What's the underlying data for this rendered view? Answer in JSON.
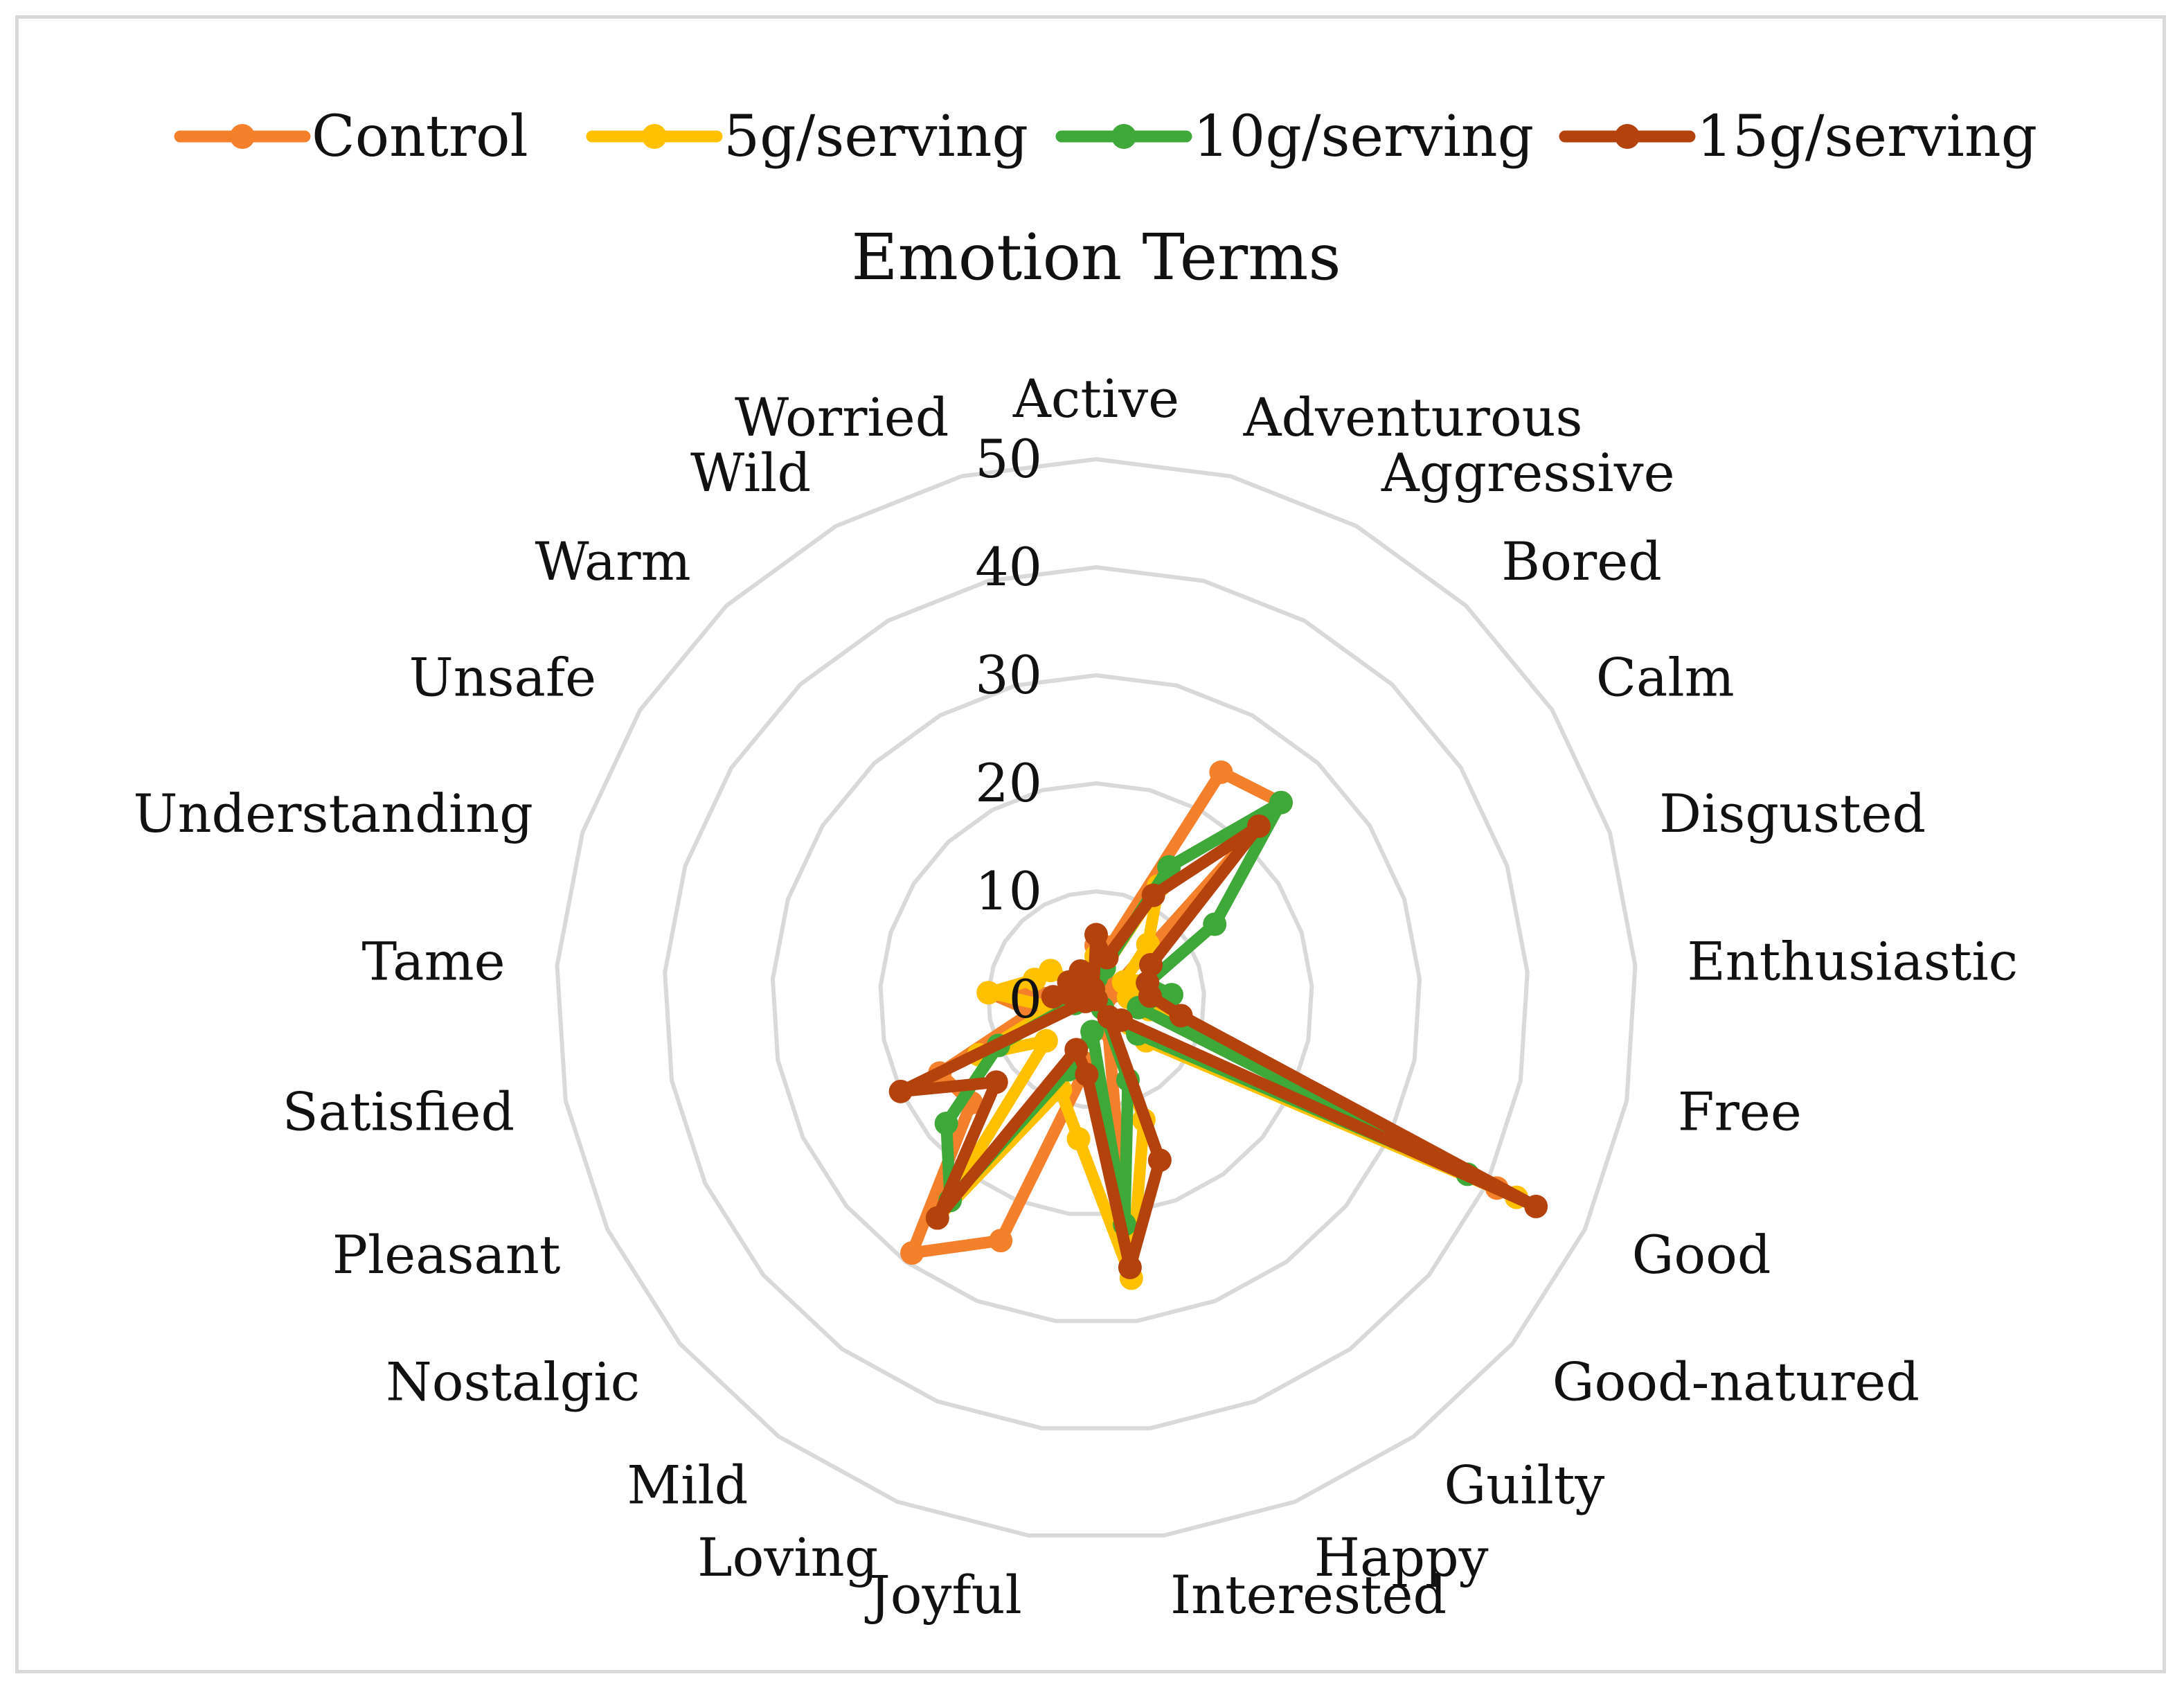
{
  "chart_data": {
    "type": "radar",
    "title": "Emotion Terms",
    "categories": [
      "Active",
      "Adventurous",
      "Aggressive",
      "Bored",
      "Calm",
      "Disgusted",
      "Enthusiastic",
      "Free",
      "Good",
      "Good-natured",
      "Guilty",
      "Happy",
      "Interested",
      "Joyful",
      "Loving",
      "Mild",
      "Nostalgic",
      "Pleasant",
      "Satisfied",
      "Tame",
      "Understanding",
      "Unsafe",
      "Warm",
      "Wild",
      "Worried"
    ],
    "radial_ticks": [
      "0",
      "10",
      "20",
      "30",
      "40",
      "50"
    ],
    "rlim": [
      0,
      50
    ],
    "grid": true,
    "legend_position": "top",
    "series": [
      {
        "name": "Control",
        "color": "#f4802b",
        "values": [
          5,
          5,
          24,
          25,
          2,
          1,
          4,
          4,
          41,
          5,
          0,
          3,
          21,
          6,
          24,
          29,
          15,
          16,
          6,
          10,
          2,
          1,
          1,
          1,
          1
        ]
      },
      {
        "name": "5g/serving",
        "color": "#ffc000",
        "values": [
          4,
          3,
          12,
          7,
          3,
          4,
          3,
          5,
          43,
          6,
          2,
          12,
          26,
          13,
          9,
          25,
          6,
          12,
          4,
          10,
          6,
          5,
          1,
          1,
          1
        ]
      },
      {
        "name": "10g/serving",
        "color": "#3ea838",
        "values": [
          2,
          3,
          14,
          25,
          13,
          5,
          7,
          4,
          38,
          5,
          1,
          8,
          21,
          3,
          7,
          23,
          18,
          10,
          2,
          1,
          0,
          2,
          1,
          0,
          1
        ]
      },
      {
        "name": "15g/serving",
        "color": "#b4420d",
        "values": [
          6,
          4,
          11,
          22,
          6,
          5,
          5,
          8,
          45,
          3,
          2,
          16,
          25,
          7,
          5,
          25,
          12,
          20,
          1,
          4,
          2,
          3,
          0,
          3,
          1
        ]
      }
    ]
  }
}
